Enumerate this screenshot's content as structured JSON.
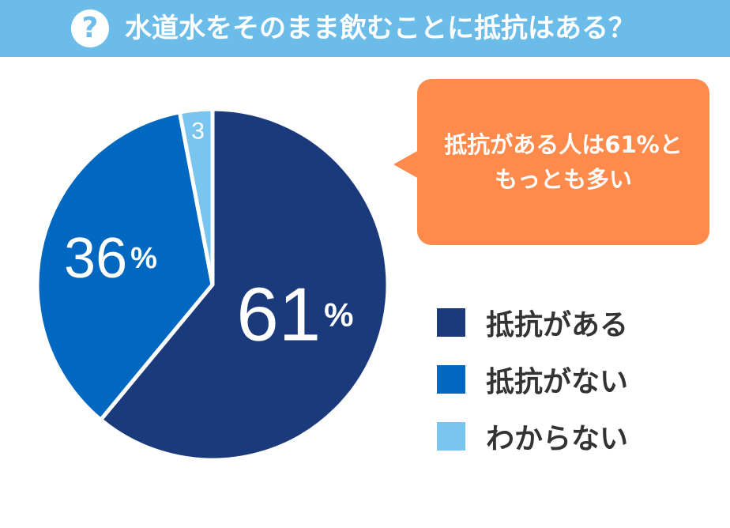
{
  "header": {
    "icon": "question-icon",
    "icon_glyph": "?",
    "title": "水道水をそのまま飲むことに抵抗はある？",
    "background": "#6cbcea"
  },
  "callout": {
    "text": "抵抗がある人は61%と\nもっとも多い",
    "background": "#fe8a4b"
  },
  "chart_data": {
    "type": "pie",
    "title": "水道水をそのまま飲むことに抵抗はある？",
    "start_angle_deg": 0,
    "direction": "clockwise",
    "slices": [
      {
        "label": "抵抗がある",
        "value": 61,
        "display_value": "61",
        "unit": "%",
        "color": "#1a3a7c"
      },
      {
        "label": "抵抗がない",
        "value": 36,
        "display_value": "36",
        "unit": "%",
        "color": "#0068c0"
      },
      {
        "label": "わからない",
        "value": 3,
        "display_value": "3",
        "unit": "",
        "color": "#79c5ef"
      }
    ],
    "legend_placement": "right"
  }
}
